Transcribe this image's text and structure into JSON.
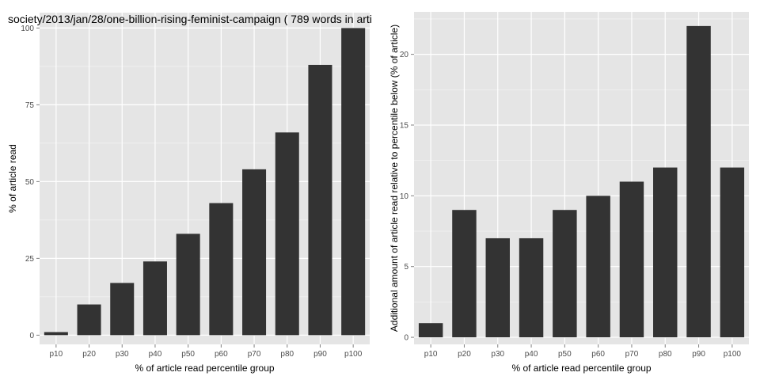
{
  "chart_data": [
    {
      "type": "bar",
      "title": "society/2013/jan/28/one-billion-rising-feminist-campaign ( 789 words in arti",
      "xlabel": "% of article read percentile group",
      "ylabel": "% of article read",
      "categories": [
        "p10",
        "p20",
        "p30",
        "p40",
        "p50",
        "p60",
        "p70",
        "p80",
        "p90",
        "p100"
      ],
      "values": [
        1,
        10,
        17,
        24,
        33,
        43,
        54,
        66,
        88,
        100
      ],
      "ylim": [
        -3,
        105
      ],
      "yticks": [
        0,
        25,
        50,
        75,
        100
      ],
      "grid": true,
      "colors": {
        "bar": "#333333",
        "panel": "#e5e5e5",
        "grid_major": "#ffffff",
        "grid_minor": "#f2f2f2",
        "text": "#000000",
        "tick_text": "#4d4d4d"
      }
    },
    {
      "type": "bar",
      "title": "",
      "xlabel": "% of article read percentile group",
      "ylabel": "Additional amount of article read relative to percentile below (% of article)",
      "categories": [
        "p10",
        "p20",
        "p30",
        "p40",
        "p50",
        "p60",
        "p70",
        "p80",
        "p90",
        "p100"
      ],
      "values": [
        1,
        9,
        7,
        7,
        9,
        10,
        11,
        12,
        22,
        12
      ],
      "ylim": [
        -0.5,
        23
      ],
      "yticks": [
        0,
        5,
        10,
        15,
        20
      ],
      "grid": true,
      "colors": {
        "bar": "#333333",
        "panel": "#e5e5e5",
        "grid_major": "#ffffff",
        "grid_minor": "#f2f2f2",
        "text": "#000000",
        "tick_text": "#4d4d4d"
      }
    }
  ]
}
